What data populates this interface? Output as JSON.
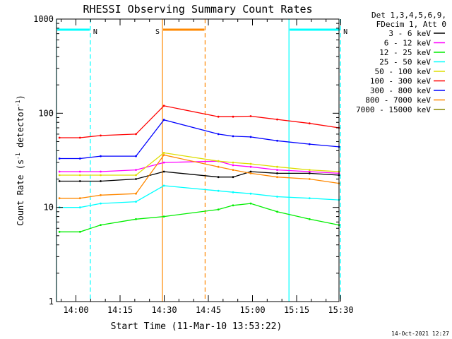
{
  "chart_data": {
    "type": "line",
    "title": "RHESSI Observing Summary Count Rates",
    "xlabel": "Start Time (11-Mar-10 13:53:22)",
    "ylabel_main": "Count Rate (s",
    "ylabel_sup1": "-1",
    "ylabel_mid": " detector",
    "ylabel_sup2": "-1",
    "ylabel_end": ")",
    "yscale": "log",
    "ylim": [
      1,
      1000
    ],
    "xlim_min": [
      0,
      96
    ],
    "y_ticks": [
      {
        "value": 1,
        "label": "1"
      },
      {
        "value": 10,
        "label": "10"
      },
      {
        "value": 100,
        "label": "100"
      },
      {
        "value": 1000,
        "label": "1000"
      }
    ],
    "x_ticks": [
      {
        "min": 6.6,
        "label": "14:00"
      },
      {
        "min": 21.6,
        "label": "14:15"
      },
      {
        "min": 36.6,
        "label": "14:30"
      },
      {
        "min": 51.6,
        "label": "14:45"
      },
      {
        "min": 66.6,
        "label": "15:00"
      },
      {
        "min": 81.6,
        "label": "15:15"
      },
      {
        "min": 96.6,
        "label": "15:30"
      }
    ],
    "legend_header": [
      "Det 1,3,4,5,6,9,",
      "FDecim 1, Att 0"
    ],
    "legend_position": "top-right outside",
    "series": [
      {
        "name": "3 - 6 keV",
        "color": "#000000",
        "values": [
          19,
          19,
          19,
          20,
          24,
          20,
          20,
          19,
          21,
          21,
          24,
          23,
          23,
          22
        ]
      },
      {
        "name": "6 - 12 keV",
        "color": "#ff00ff",
        "values": [
          24,
          24,
          24,
          25,
          30,
          33,
          34,
          32,
          31,
          28,
          27,
          25,
          24,
          23
        ]
      },
      {
        "name": "12 - 25 keV",
        "color": "#00ee00",
        "values": [
          5.5,
          5.5,
          6.5,
          7.5,
          8,
          8.5,
          8.8,
          8.8,
          9.5,
          10.5,
          11,
          9,
          7.5,
          6.5
        ]
      },
      {
        "name": "25 - 50 keV",
        "color": "#00ffff",
        "values": [
          10,
          10,
          11,
          11.5,
          17,
          16,
          16,
          15,
          15,
          14.5,
          14,
          13,
          12.5,
          12
        ]
      },
      {
        "name": "50 - 100 keV",
        "color": "#dddd00",
        "values": [
          22,
          22,
          22,
          22,
          38,
          35,
          34,
          32,
          31,
          30,
          29,
          27,
          25,
          24
        ]
      },
      {
        "name": "100 - 300 keV",
        "color": "#ff0000",
        "values": [
          55,
          55,
          58,
          60,
          120,
          104,
          98,
          94,
          92,
          92,
          93,
          86,
          78,
          70
        ]
      },
      {
        "name": "300 - 800 keV",
        "color": "#0000ff",
        "values": [
          33,
          33,
          35,
          35,
          85,
          71,
          67,
          63,
          60,
          57,
          56,
          51,
          47,
          44
        ]
      },
      {
        "name": "800 - 7000 keV",
        "color": "#ff8800",
        "values": [
          12.5,
          12.5,
          13.5,
          14,
          36,
          32,
          30,
          28,
          27,
          25,
          23,
          21,
          20,
          18
        ]
      },
      {
        "name": "7000 - 15000 keV",
        "color": "#888800",
        "values": []
      }
    ],
    "x_minutes": [
      1,
      8,
      15,
      27,
      36.5,
      40,
      45,
      50,
      55,
      60,
      66,
      75,
      86,
      96
    ],
    "gap_minutes": [
      37,
      55
    ],
    "flags": [
      {
        "label": "N",
        "color": "#00ffff",
        "start": 0,
        "end": 11.5
      },
      {
        "label": "N",
        "color": "#00ffff",
        "start": 79,
        "end": 96.5
      },
      {
        "label": "S",
        "color": "#ff8800",
        "start": 36,
        "end": 50.5
      }
    ],
    "timestamp": "14-Oct-2021 12:27"
  }
}
